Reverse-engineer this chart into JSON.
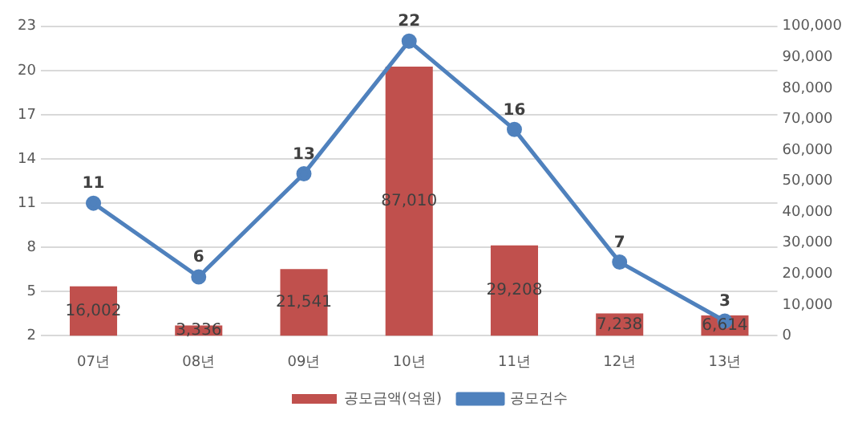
{
  "chart_data": {
    "type": "bar",
    "categories": [
      "07년",
      "08년",
      "09년",
      "10년",
      "11년",
      "12년",
      "13년"
    ],
    "series": [
      {
        "name": "공모금액(억원)",
        "axis": "y2",
        "color": "#c0504d",
        "values": [
          16002,
          3336,
          21541,
          87010,
          29208,
          7238,
          6614
        ],
        "value_labels": [
          "16,002",
          "3,336",
          "21,541",
          "87,010",
          "29,208",
          "7,238",
          "6,614"
        ]
      },
      {
        "name": "공모건수",
        "type": "line",
        "axis": "y",
        "color": "#4f81bd",
        "values": [
          11,
          6,
          13,
          22,
          16,
          7,
          3
        ],
        "value_labels": [
          "11",
          "6",
          "13",
          "22",
          "16",
          "7",
          "3"
        ]
      }
    ],
    "ylim": [
      2,
      23
    ],
    "yticks": [
      2,
      5,
      8,
      11,
      14,
      17,
      20,
      23
    ],
    "y2lim": [
      0,
      100000
    ],
    "y2ticks": [
      0,
      {
        "value": 10000,
        "label": "10,000"
      },
      {
        "value": 20000,
        "label": "20,000"
      },
      {
        "value": 30000,
        "label": "30,000"
      },
      {
        "value": 40000,
        "label": "40,000"
      },
      {
        "value": 50000,
        "label": "50,000"
      },
      {
        "value": 60000,
        "label": "60,000"
      },
      {
        "value": 70000,
        "label": "70,000"
      },
      {
        "value": 80000,
        "label": "80,000"
      },
      {
        "value": 90000,
        "label": "90,000"
      },
      {
        "value": 100000,
        "label": "100,000"
      }
    ],
    "grid": "y",
    "legend": "bottom",
    "marker": "circle",
    "line_style": "solid"
  }
}
